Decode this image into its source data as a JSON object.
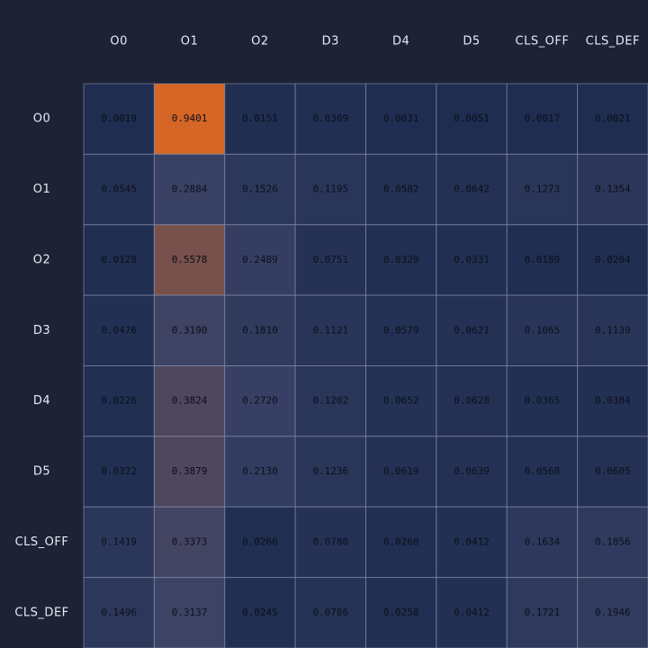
{
  "chart_data": {
    "type": "heatmap",
    "x_labels": [
      "O0",
      "O1",
      "O2",
      "D3",
      "D4",
      "D5",
      "CLS_OFF",
      "CLS_DEF"
    ],
    "y_labels": [
      "O0",
      "O1",
      "O2",
      "D3",
      "D4",
      "D5",
      "CLS_OFF",
      "CLS_DEF"
    ],
    "values": [
      [
        0.0019,
        0.9401,
        0.0151,
        0.0309,
        0.0031,
        0.0051,
        0.0017,
        0.0021
      ],
      [
        0.0545,
        0.2884,
        0.1526,
        0.1195,
        0.0582,
        0.0642,
        0.1273,
        0.1354
      ],
      [
        0.0128,
        0.5578,
        0.2489,
        0.0751,
        0.0329,
        0.0331,
        0.0189,
        0.0204
      ],
      [
        0.0476,
        0.319,
        0.181,
        0.1121,
        0.0579,
        0.0621,
        0.1065,
        0.1139
      ],
      [
        0.0226,
        0.3824,
        0.272,
        0.1202,
        0.0652,
        0.0628,
        0.0365,
        0.0384
      ],
      [
        0.0322,
        0.3879,
        0.213,
        0.1236,
        0.0619,
        0.0639,
        0.0568,
        0.0605
      ],
      [
        0.1419,
        0.3373,
        0.0266,
        0.078,
        0.026,
        0.0412,
        0.1634,
        0.1856
      ],
      [
        0.1496,
        0.3137,
        0.0245,
        0.0786,
        0.0258,
        0.0412,
        0.1721,
        0.1946
      ]
    ],
    "value_range": [
      0,
      1
    ],
    "color_scale": [
      "#1e2d50",
      "#3a4266",
      "#e3691f"
    ],
    "background_color": "#1d2235",
    "grid": true,
    "legend": "none"
  }
}
